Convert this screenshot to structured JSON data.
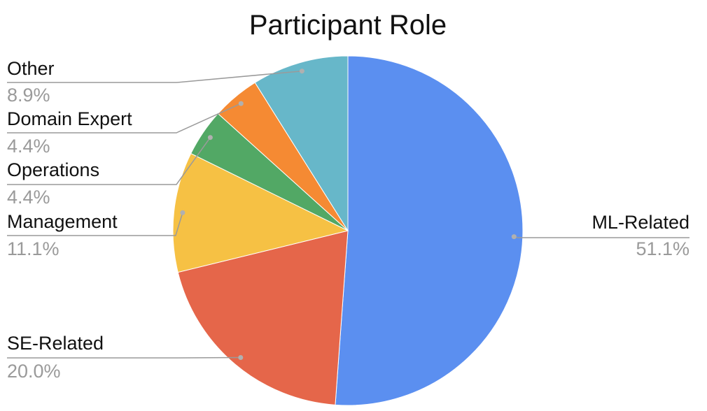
{
  "chart_data": {
    "type": "pie",
    "title": "Participant Role",
    "start_angle_deg": 0,
    "direction": "clockwise",
    "label_color": "#111111",
    "percent_color": "#9a9a9a",
    "leader_color": "#9a9a9a",
    "slices": [
      {
        "label": "ML-Related",
        "value": 51.1,
        "percent_text": "51.1%",
        "color": "#5b8ff0"
      },
      {
        "label": "SE-Related",
        "value": 20.0,
        "percent_text": "20.0%",
        "color": "#e5664a"
      },
      {
        "label": "Management",
        "value": 11.1,
        "percent_text": "11.1%",
        "color": "#f6c144"
      },
      {
        "label": "Operations",
        "value": 4.4,
        "percent_text": "4.4%",
        "color": "#52a865"
      },
      {
        "label": "Domain Expert",
        "value": 4.4,
        "percent_text": "4.4%",
        "color": "#f58a33"
      },
      {
        "label": "Other",
        "value": 8.9,
        "percent_text": "8.9%",
        "color": "#67b7c9"
      }
    ]
  }
}
